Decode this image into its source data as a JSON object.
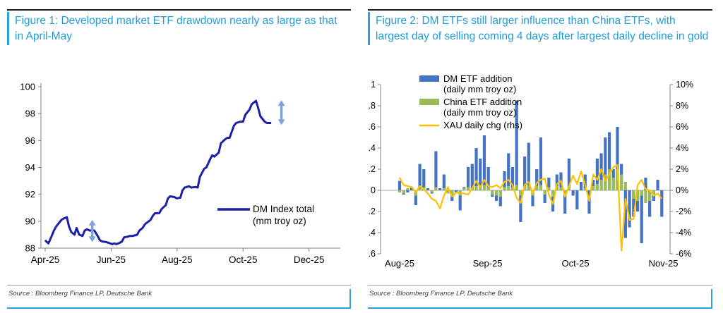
{
  "colors": {
    "title_blue": "#1f9cd8",
    "rule_blue": "#29a3dc",
    "top_rule": "#1a1a1a",
    "axis_gray": "#808080",
    "navy_line": "#1c1fa8",
    "arrow_blue": "#7da3dc",
    "dm_bar_blue": "#4472c4",
    "china_bar_green": "#9bbb59",
    "xau_yellow": "#ffc000"
  },
  "chart_data": [
    {
      "type": "line",
      "title": "Figure 1: Developed market ETF drawdown nearly as large as that in April-May",
      "source": "Source : Bloomberg Finance LP, Deutsche Bank",
      "legend_lines": [
        "DM Index total",
        "(mm troy oz)"
      ],
      "ylabel": "mm troy oz",
      "ylim": [
        88,
        100
      ],
      "y_ticks": [
        100,
        98,
        96,
        94,
        92,
        90,
        88
      ],
      "x_ticks": [
        "Apr-25",
        "Jun-25",
        "Aug-25",
        "Oct-25",
        "Dec-25"
      ],
      "grid": false,
      "series": [
        {
          "name": "DM Index total (mm troy oz)",
          "points": [
            [
              "2025-04-01",
              88.6
            ],
            [
              "2025-04-02",
              88.5
            ],
            [
              "2025-04-04",
              88.35
            ],
            [
              "2025-04-07",
              88.9
            ],
            [
              "2025-04-09",
              89.3
            ],
            [
              "2025-04-11",
              89.6
            ],
            [
              "2025-04-14",
              89.9
            ],
            [
              "2025-04-16",
              90.1
            ],
            [
              "2025-04-18",
              90.2
            ],
            [
              "2025-04-21",
              90.3
            ],
            [
              "2025-04-23",
              89.6
            ],
            [
              "2025-04-25",
              89.2
            ],
            [
              "2025-04-28",
              89.0
            ],
            [
              "2025-04-30",
              89.5
            ],
            [
              "2025-05-02",
              89.0
            ],
            [
              "2025-05-05",
              88.9
            ],
            [
              "2025-05-07",
              89.3
            ],
            [
              "2025-05-09",
              89.4
            ],
            [
              "2025-05-12",
              89.3
            ],
            [
              "2025-05-14",
              89.35
            ],
            [
              "2025-05-16",
              89.3
            ],
            [
              "2025-05-19",
              88.9
            ],
            [
              "2025-05-21",
              88.6
            ],
            [
              "2025-05-23",
              88.5
            ],
            [
              "2025-05-27",
              88.45
            ],
            [
              "2025-05-29",
              88.4
            ],
            [
              "2025-06-02",
              88.3
            ],
            [
              "2025-06-04",
              88.35
            ],
            [
              "2025-06-06",
              88.3
            ],
            [
              "2025-06-09",
              88.4
            ],
            [
              "2025-06-11",
              88.5
            ],
            [
              "2025-06-13",
              88.8
            ],
            [
              "2025-06-16",
              88.85
            ],
            [
              "2025-06-18",
              88.9
            ],
            [
              "2025-06-20",
              88.9
            ],
            [
              "2025-06-23",
              88.95
            ],
            [
              "2025-06-25",
              89.0
            ],
            [
              "2025-06-27",
              89.3
            ],
            [
              "2025-06-30",
              89.5
            ],
            [
              "2025-07-02",
              89.8
            ],
            [
              "2025-07-07",
              90.1
            ],
            [
              "2025-07-09",
              90.4
            ],
            [
              "2025-07-11",
              90.6
            ],
            [
              "2025-07-15",
              90.6
            ],
            [
              "2025-07-17",
              90.9
            ],
            [
              "2025-07-21",
              91.2
            ],
            [
              "2025-07-23",
              91.7
            ],
            [
              "2025-07-25",
              91.85
            ],
            [
              "2025-07-29",
              91.8
            ],
            [
              "2025-07-31",
              91.7
            ],
            [
              "2025-08-04",
              91.75
            ],
            [
              "2025-08-06",
              92.3
            ],
            [
              "2025-08-08",
              92.5
            ],
            [
              "2025-08-12",
              92.6
            ],
            [
              "2025-08-14",
              92.5
            ],
            [
              "2025-08-18",
              92.55
            ],
            [
              "2025-08-20",
              92.5
            ],
            [
              "2025-08-22",
              93.3
            ],
            [
              "2025-08-26",
              93.9
            ],
            [
              "2025-08-28",
              94.0
            ],
            [
              "2025-09-01",
              94.6
            ],
            [
              "2025-09-03",
              94.9
            ],
            [
              "2025-09-05",
              94.8
            ],
            [
              "2025-09-09",
              95.1
            ],
            [
              "2025-09-11",
              95.8
            ],
            [
              "2025-09-15",
              96.1
            ],
            [
              "2025-09-17",
              96.2
            ],
            [
              "2025-09-19",
              96.2
            ],
            [
              "2025-09-23",
              97.1
            ],
            [
              "2025-09-25",
              97.3
            ],
            [
              "2025-09-29",
              97.4
            ],
            [
              "2025-10-01",
              97.4
            ],
            [
              "2025-10-03",
              97.9
            ],
            [
              "2025-10-07",
              98.3
            ],
            [
              "2025-10-09",
              98.7
            ],
            [
              "2025-10-13",
              98.95
            ],
            [
              "2025-10-15",
              98.4
            ],
            [
              "2025-10-17",
              97.8
            ],
            [
              "2025-10-21",
              97.4
            ],
            [
              "2025-10-23",
              97.3
            ],
            [
              "2025-10-27",
              97.3
            ]
          ]
        }
      ],
      "annotations": [
        {
          "kind": "double-arrow",
          "date": "2025-05-14",
          "from": 88.45,
          "to": 90.1
        },
        {
          "kind": "double-arrow",
          "date": "2025-11-06",
          "from": 97.15,
          "to": 99.0
        }
      ]
    },
    {
      "type": "bar",
      "title": "Figure 2: DM ETFs still larger influence than China ETFs, with largest day of selling coming 4 days after largest daily decline in gold",
      "source": "Source : Bloomberg Finance LP, Deutsche Bank",
      "left_axis": {
        "lim": [
          -0.6,
          1.0
        ],
        "ticks": [
          1,
          0.8,
          0.6,
          0.4,
          0.2,
          0,
          -0.2,
          -0.4,
          -0.6
        ]
      },
      "right_axis": {
        "lim": [
          -6,
          10
        ],
        "ticks": [
          "10%",
          "8%",
          "6%",
          "4%",
          "2%",
          "0%",
          "-2%",
          "-4%",
          "-6%"
        ]
      },
      "x_ticks": [
        "Aug-25",
        "Sep-25",
        "Oct-25",
        "Nov-25"
      ],
      "legend": [
        {
          "swatch": "bar-blue",
          "lines": [
            "DM ETF addition",
            "(daily mm troy oz)"
          ]
        },
        {
          "swatch": "bar-green",
          "lines": [
            "China ETF addition",
            "(daily mm troy oz)"
          ]
        },
        {
          "swatch": "line-yellow",
          "lines": [
            "XAU daily chg (rhs)"
          ]
        }
      ],
      "categories": [
        "08-01",
        "08-04",
        "08-05",
        "08-06",
        "08-07",
        "08-08",
        "08-11",
        "08-12",
        "08-13",
        "08-14",
        "08-15",
        "08-18",
        "08-19",
        "08-20",
        "08-21",
        "08-22",
        "08-25",
        "08-26",
        "08-27",
        "08-28",
        "08-29",
        "09-01",
        "09-02",
        "09-03",
        "09-04",
        "09-05",
        "09-08",
        "09-09",
        "09-10",
        "09-11",
        "09-12",
        "09-15",
        "09-16",
        "09-17",
        "09-18",
        "09-19",
        "09-22",
        "09-23",
        "09-24",
        "09-25",
        "09-26",
        "09-29",
        "09-30",
        "10-01",
        "10-02",
        "10-03",
        "10-06",
        "10-07",
        "10-08",
        "10-09",
        "10-10",
        "10-13",
        "10-14",
        "10-15",
        "10-16",
        "10-17",
        "10-20",
        "10-21",
        "10-22",
        "10-23",
        "10-24",
        "10-27",
        "10-28",
        "10-29",
        "10-30",
        "10-31"
      ],
      "series": [
        {
          "name": "DM ETF addition (daily mm troy oz)",
          "axis": "left",
          "values": [
            0.09,
            -0.04,
            -0.02,
            0.03,
            -0.14,
            0.25,
            0.2,
            0.02,
            -0.03,
            0.37,
            0.02,
            0.15,
            -0.02,
            -0.1,
            -0.03,
            -0.19,
            0.03,
            0.22,
            0.25,
            0.4,
            0.3,
            0.52,
            0.22,
            -0.06,
            -0.1,
            -0.15,
            0.18,
            0.35,
            0.22,
            0.85,
            -0.3,
            0.32,
            0.45,
            -0.15,
            0.2,
            0.5,
            -0.12,
            0.12,
            -0.2,
            0.15,
            0.17,
            -0.22,
            0.3,
            -0.05,
            -0.18,
            0.08,
            0.15,
            -0.22,
            0.1,
            0.3,
            0.35,
            0.5,
            0.55,
            0.2,
            0.6,
            0.25,
            -0.45,
            -0.35,
            -0.25,
            -0.2,
            -0.5,
            0.12,
            -0.25,
            -0.1,
            0.1,
            -0.25
          ]
        },
        {
          "name": "China ETF addition (daily mm troy oz)",
          "axis": "left",
          "values": [
            -0.02,
            -0.03,
            0.02,
            0.0,
            -0.05,
            0.02,
            0.03,
            0.0,
            -0.02,
            0.03,
            0.0,
            0.02,
            -0.03,
            -0.04,
            0.0,
            -0.05,
            0.02,
            0.03,
            0.02,
            0.04,
            0.03,
            0.05,
            0.03,
            -0.04,
            -0.05,
            -0.06,
            0.03,
            0.04,
            0.03,
            0.05,
            -0.05,
            0.04,
            0.05,
            -0.05,
            0.04,
            0.05,
            -0.04,
            0.03,
            -0.06,
            0.04,
            0.03,
            -0.05,
            0.04,
            0.0,
            0.0,
            0.0,
            0.02,
            0.0,
            0.04,
            0.06,
            0.1,
            0.15,
            0.2,
            0.12,
            0.2,
            0.15,
            0.08,
            0.0,
            -0.08,
            -0.1,
            -0.05,
            -0.12,
            -0.1,
            -0.05,
            0.0,
            0.0
          ]
        },
        {
          "name": "XAU daily chg (rhs)",
          "axis": "right",
          "values": [
            1.2,
            0.5,
            0.4,
            0.3,
            -0.2,
            0.4,
            0.1,
            -0.3,
            -0.8,
            -1.0,
            -1.7,
            -0.5,
            0.3,
            -0.6,
            -0.2,
            -0.3,
            -0.3,
            -0.4,
            0.2,
            0.9,
            0.3,
            1.0,
            0.4,
            0.3,
            0.5,
            0.2,
            0.8,
            1.0,
            0.5,
            -0.7,
            -1.2,
            0.5,
            0.8,
            -0.3,
            0.7,
            1.0,
            1.1,
            -0.4,
            -1.3,
            0.6,
            0.9,
            -0.6,
            0.4,
            1.4,
            0.6,
            1.8,
            0.5,
            -1.0,
            1.5,
            1.0,
            2.0,
            0.9,
            1.5,
            2.2,
            2.4,
            -5.7,
            -0.8,
            -2.8,
            -2.7,
            0.5,
            1.0,
            0.1,
            0.0,
            -0.5,
            -0.3,
            -0.8
          ]
        }
      ]
    }
  ]
}
